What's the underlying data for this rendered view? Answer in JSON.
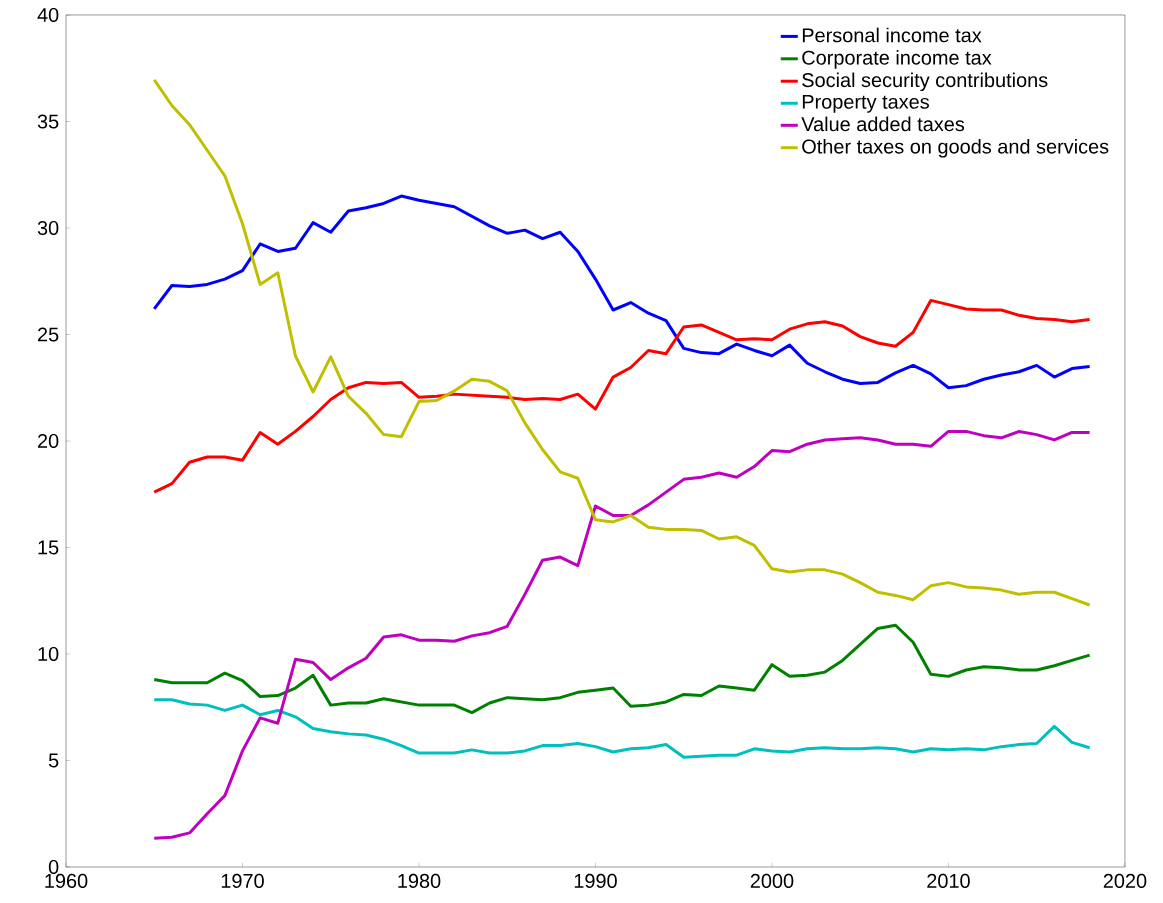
{
  "chart_data": {
    "type": "line",
    "x": [
      1965,
      1966,
      1967,
      1968,
      1969,
      1970,
      1971,
      1972,
      1973,
      1974,
      1975,
      1976,
      1977,
      1978,
      1979,
      1980,
      1981,
      1982,
      1983,
      1984,
      1985,
      1986,
      1987,
      1988,
      1989,
      1990,
      1991,
      1992,
      1993,
      1994,
      1995,
      1996,
      1997,
      1998,
      1999,
      2000,
      2001,
      2002,
      2003,
      2004,
      2005,
      2006,
      2007,
      2008,
      2009,
      2010,
      2011,
      2012,
      2013,
      2014,
      2015,
      2016,
      2017,
      2018
    ],
    "series": [
      {
        "name": "Personal income tax",
        "color": "#0000ff",
        "values": [
          26.2,
          27.3,
          27.25,
          27.35,
          27.6,
          28.0,
          29.25,
          28.9,
          29.05,
          30.25,
          29.8,
          30.8,
          30.95,
          31.15,
          31.5,
          31.3,
          31.15,
          31.0,
          30.55,
          30.1,
          29.75,
          29.9,
          29.5,
          29.8,
          28.9,
          27.6,
          26.15,
          26.5,
          26.0,
          25.65,
          24.35,
          24.15,
          24.1,
          24.55,
          24.25,
          24.0,
          24.5,
          23.65,
          23.25,
          22.9,
          22.7,
          22.75,
          23.2,
          23.55,
          23.15,
          22.5,
          22.6,
          22.9,
          23.1,
          23.25,
          23.55,
          23.0,
          23.4,
          23.5
        ]
      },
      {
        "name": "Corporate income tax",
        "color": "#008000",
        "values": [
          8.8,
          8.65,
          8.65,
          8.65,
          9.1,
          8.75,
          8.0,
          8.05,
          8.4,
          9.0,
          7.6,
          7.7,
          7.7,
          7.9,
          7.75,
          7.6,
          7.6,
          7.6,
          7.25,
          7.7,
          7.95,
          7.9,
          7.85,
          7.95,
          8.2,
          8.3,
          8.4,
          7.55,
          7.6,
          7.75,
          8.1,
          8.05,
          8.5,
          8.4,
          8.3,
          9.5,
          8.95,
          9.0,
          9.15,
          9.7,
          10.45,
          11.2,
          11.35,
          10.55,
          9.05,
          8.95,
          9.25,
          9.4,
          9.35,
          9.25,
          9.25,
          9.45,
          9.7,
          9.95
        ]
      },
      {
        "name": "Social security contributions",
        "color": "#ff0000",
        "values": [
          17.6,
          18.0,
          19.0,
          19.25,
          19.25,
          19.1,
          20.4,
          19.85,
          20.45,
          21.15,
          21.95,
          22.5,
          22.75,
          22.7,
          22.75,
          22.05,
          22.1,
          22.2,
          22.15,
          22.1,
          22.05,
          21.95,
          22.0,
          21.95,
          22.2,
          21.5,
          23.0,
          23.45,
          24.25,
          24.1,
          25.35,
          25.45,
          25.1,
          24.75,
          24.8,
          24.75,
          25.25,
          25.5,
          25.6,
          25.4,
          24.9,
          24.6,
          24.45,
          25.1,
          26.6,
          26.4,
          26.2,
          26.15,
          26.15,
          25.9,
          25.75,
          25.7,
          25.6,
          25.7
        ]
      },
      {
        "name": "Property taxes",
        "color": "#00bfbf",
        "values": [
          7.85,
          7.85,
          7.65,
          7.6,
          7.35,
          7.6,
          7.15,
          7.35,
          7.05,
          6.5,
          6.35,
          6.25,
          6.2,
          6.0,
          5.7,
          5.35,
          5.35,
          5.35,
          5.5,
          5.35,
          5.35,
          5.45,
          5.7,
          5.7,
          5.8,
          5.65,
          5.4,
          5.55,
          5.6,
          5.75,
          5.15,
          5.2,
          5.25,
          5.25,
          5.55,
          5.45,
          5.4,
          5.55,
          5.6,
          5.55,
          5.55,
          5.6,
          5.55,
          5.4,
          5.55,
          5.5,
          5.55,
          5.5,
          5.65,
          5.75,
          5.8,
          6.6,
          5.85,
          5.6
        ]
      },
      {
        "name": "Value added taxes",
        "color": "#bf00bf",
        "values": [
          1.35,
          1.4,
          1.6,
          2.5,
          3.35,
          5.45,
          7.0,
          6.75,
          9.75,
          9.6,
          8.8,
          9.35,
          9.8,
          10.8,
          10.9,
          10.65,
          10.65,
          10.6,
          10.85,
          11.0,
          11.3,
          12.8,
          14.4,
          14.55,
          14.15,
          16.95,
          16.5,
          16.5,
          17.0,
          17.6,
          18.2,
          18.3,
          18.5,
          18.3,
          18.8,
          19.55,
          19.5,
          19.85,
          20.05,
          20.1,
          20.15,
          20.05,
          19.85,
          19.85,
          19.75,
          20.45,
          20.45,
          20.25,
          20.15,
          20.45,
          20.3,
          20.05,
          20.4,
          20.4
        ]
      },
      {
        "name": "Other taxes on goods and services",
        "color": "#bfbf00",
        "values": [
          36.95,
          35.75,
          34.85,
          33.65,
          32.45,
          30.2,
          27.35,
          27.9,
          24.0,
          22.3,
          23.95,
          22.1,
          21.3,
          20.3,
          20.2,
          21.85,
          21.9,
          22.35,
          22.9,
          22.8,
          22.35,
          20.85,
          19.6,
          18.55,
          18.25,
          16.3,
          16.2,
          16.5,
          15.95,
          15.85,
          15.85,
          15.8,
          15.4,
          15.5,
          15.1,
          14.0,
          13.85,
          13.95,
          13.95,
          13.75,
          13.35,
          12.9,
          12.75,
          12.55,
          13.2,
          13.35,
          13.15,
          13.1,
          13.0,
          12.8,
          12.9,
          12.9,
          12.6,
          12.3
        ]
      }
    ],
    "xlim": [
      1960,
      2020
    ],
    "ylim": [
      0,
      40
    ],
    "xticks": [
      1960,
      1970,
      1980,
      1990,
      2000,
      2010,
      2020
    ],
    "yticks": [
      0,
      5,
      10,
      15,
      20,
      25,
      30,
      35,
      40
    ],
    "legend": "top right",
    "grid": false,
    "marker": "none",
    "line_style": "solid"
  }
}
